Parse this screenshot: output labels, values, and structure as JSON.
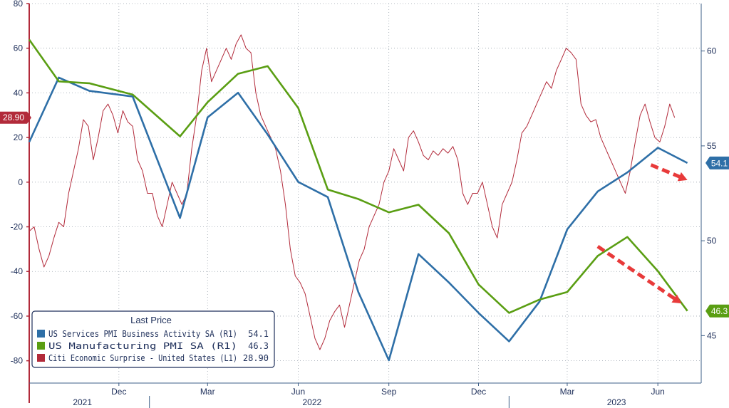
{
  "chart_data": {
    "type": "line",
    "grid": true,
    "legend": {
      "title": "Last Price",
      "placement": "bottom-left",
      "entries": [
        {
          "label": "US Services PMI Business Activity SA  (R1)",
          "value": "54.1",
          "color": "#2e6fa7"
        },
        {
          "label": "US Manufacturing PMI SA  (R1)",
          "value": "46.3",
          "color": "#5a9e13"
        },
        {
          "label": "Citi Economic Surprise - United States  (L1)",
          "value": "28.90",
          "color": "#b22a3a"
        }
      ]
    },
    "left_axis": {
      "min": -90,
      "max": 80,
      "ticks": [
        80,
        60,
        40,
        20,
        0,
        -20,
        -40,
        -60,
        -80
      ],
      "color": "#b22a3a"
    },
    "right_axis": {
      "min": 42.5,
      "max": 62.5,
      "ticks": [
        60,
        55,
        50,
        45
      ]
    },
    "x_axis": {
      "min": "2021-09-01",
      "max": "2023-07-15",
      "month_labels": [
        {
          "label": "Dec",
          "date": "2021-12-01"
        },
        {
          "label": "Mar",
          "date": "2022-03-01"
        },
        {
          "label": "Jun",
          "date": "2022-06-01"
        },
        {
          "label": "Sep",
          "date": "2022-09-01"
        },
        {
          "label": "Dec",
          "date": "2022-12-01"
        },
        {
          "label": "Mar",
          "date": "2023-03-01"
        },
        {
          "label": "Jun",
          "date": "2023-06-01"
        }
      ],
      "year_labels": [
        {
          "label": "2021",
          "date": "2021-10-25"
        },
        {
          "label": "2022",
          "date": "2022-06-15"
        },
        {
          "label": "2023",
          "date": "2023-04-20"
        }
      ],
      "year_dividers": [
        "2022-01-01",
        "2023-01-01"
      ]
    },
    "series": [
      {
        "name": "US Services PMI Business Activity SA",
        "axis": "right",
        "color": "#2e6fa7",
        "last_label": "54.1",
        "points": [
          [
            "2021-09-01",
            55.2
          ],
          [
            "2021-10-01",
            58.6
          ],
          [
            "2021-11-01",
            57.9
          ],
          [
            "2021-12-15",
            57.6
          ],
          [
            "2022-02-01",
            51.2
          ],
          [
            "2022-03-01",
            56.5
          ],
          [
            "2022-04-01",
            57.8
          ],
          [
            "2022-05-01",
            55.6
          ],
          [
            "2022-06-01",
            53.1
          ],
          [
            "2022-07-01",
            52.3
          ],
          [
            "2022-08-01",
            47.3
          ],
          [
            "2022-09-01",
            43.7
          ],
          [
            "2022-10-01",
            49.3
          ],
          [
            "2022-11-01",
            47.8
          ],
          [
            "2022-12-01",
            46.2
          ],
          [
            "2023-01-01",
            44.7
          ],
          [
            "2023-02-01",
            46.8
          ],
          [
            "2023-03-01",
            50.6
          ],
          [
            "2023-04-01",
            52.6
          ],
          [
            "2023-05-01",
            53.6
          ],
          [
            "2023-06-01",
            54.9
          ],
          [
            "2023-07-01",
            54.1
          ]
        ]
      },
      {
        "name": "US Manufacturing PMI SA",
        "axis": "right",
        "color": "#5a9e13",
        "last_label": "46.3",
        "points": [
          [
            "2021-09-01",
            60.6
          ],
          [
            "2021-10-01",
            58.4
          ],
          [
            "2021-11-01",
            58.3
          ],
          [
            "2021-12-15",
            57.7
          ],
          [
            "2022-02-01",
            55.5
          ],
          [
            "2022-03-01",
            57.3
          ],
          [
            "2022-04-01",
            58.8
          ],
          [
            "2022-05-01",
            59.2
          ],
          [
            "2022-06-01",
            57.0
          ],
          [
            "2022-07-01",
            52.7
          ],
          [
            "2022-08-01",
            52.2
          ],
          [
            "2022-09-01",
            51.5
          ],
          [
            "2022-10-01",
            51.9
          ],
          [
            "2022-11-01",
            50.4
          ],
          [
            "2022-12-01",
            47.7
          ],
          [
            "2023-01-01",
            46.2
          ],
          [
            "2023-02-01",
            46.9
          ],
          [
            "2023-03-01",
            47.3
          ],
          [
            "2023-04-01",
            49.2
          ],
          [
            "2023-05-01",
            50.2
          ],
          [
            "2023-06-01",
            48.4
          ],
          [
            "2023-07-01",
            46.3
          ]
        ]
      },
      {
        "name": "Citi Economic Surprise - United States",
        "axis": "left",
        "color": "#b22a3a",
        "last_label": "28.90",
        "points": [
          [
            "2021-09-01",
            -22
          ],
          [
            "2021-09-06",
            -20
          ],
          [
            "2021-09-11",
            -30
          ],
          [
            "2021-09-16",
            -38
          ],
          [
            "2021-09-21",
            -33
          ],
          [
            "2021-09-26",
            -25
          ],
          [
            "2021-10-01",
            -18
          ],
          [
            "2021-10-06",
            -20
          ],
          [
            "2021-10-11",
            -5
          ],
          [
            "2021-10-16",
            5
          ],
          [
            "2021-10-21",
            15
          ],
          [
            "2021-10-26",
            28
          ],
          [
            "2021-10-31",
            25
          ],
          [
            "2021-11-05",
            10
          ],
          [
            "2021-11-10",
            20
          ],
          [
            "2021-11-15",
            32
          ],
          [
            "2021-11-20",
            35
          ],
          [
            "2021-11-25",
            30
          ],
          [
            "2021-11-30",
            22
          ],
          [
            "2021-12-05",
            32
          ],
          [
            "2021-12-10",
            27
          ],
          [
            "2021-12-15",
            25
          ],
          [
            "2021-12-20",
            10
          ],
          [
            "2021-12-25",
            5
          ],
          [
            "2021-12-30",
            -5
          ],
          [
            "2022-01-04",
            -5
          ],
          [
            "2022-01-09",
            -15
          ],
          [
            "2022-01-14",
            -20
          ],
          [
            "2022-01-19",
            -10
          ],
          [
            "2022-01-24",
            0
          ],
          [
            "2022-01-29",
            -5
          ],
          [
            "2022-02-03",
            -10
          ],
          [
            "2022-02-08",
            -5
          ],
          [
            "2022-02-13",
            15
          ],
          [
            "2022-02-18",
            30
          ],
          [
            "2022-02-23",
            50
          ],
          [
            "2022-02-28",
            60
          ],
          [
            "2022-03-05",
            45
          ],
          [
            "2022-03-10",
            50
          ],
          [
            "2022-03-15",
            55
          ],
          [
            "2022-03-20",
            60
          ],
          [
            "2022-03-25",
            55
          ],
          [
            "2022-03-30",
            62
          ],
          [
            "2022-04-04",
            66
          ],
          [
            "2022-04-09",
            60
          ],
          [
            "2022-04-14",
            58
          ],
          [
            "2022-04-19",
            40
          ],
          [
            "2022-04-24",
            30
          ],
          [
            "2022-04-29",
            25
          ],
          [
            "2022-05-04",
            20
          ],
          [
            "2022-05-09",
            15
          ],
          [
            "2022-05-14",
            5
          ],
          [
            "2022-05-19",
            -10
          ],
          [
            "2022-05-24",
            -30
          ],
          [
            "2022-05-29",
            -42
          ],
          [
            "2022-06-03",
            -45
          ],
          [
            "2022-06-08",
            -50
          ],
          [
            "2022-06-13",
            -60
          ],
          [
            "2022-06-18",
            -70
          ],
          [
            "2022-06-23",
            -75
          ],
          [
            "2022-06-28",
            -70
          ],
          [
            "2022-07-03",
            -62
          ],
          [
            "2022-07-08",
            -58
          ],
          [
            "2022-07-13",
            -55
          ],
          [
            "2022-07-18",
            -65
          ],
          [
            "2022-07-23",
            -55
          ],
          [
            "2022-07-28",
            -45
          ],
          [
            "2022-08-02",
            -35
          ],
          [
            "2022-08-07",
            -30
          ],
          [
            "2022-08-12",
            -20
          ],
          [
            "2022-08-17",
            -15
          ],
          [
            "2022-08-22",
            -10
          ],
          [
            "2022-08-27",
            0
          ],
          [
            "2022-09-01",
            5
          ],
          [
            "2022-09-06",
            15
          ],
          [
            "2022-09-11",
            10
          ],
          [
            "2022-09-16",
            5
          ],
          [
            "2022-09-21",
            20
          ],
          [
            "2022-09-26",
            23
          ],
          [
            "2022-10-01",
            18
          ],
          [
            "2022-10-06",
            12
          ],
          [
            "2022-10-11",
            10
          ],
          [
            "2022-10-16",
            14
          ],
          [
            "2022-10-21",
            12
          ],
          [
            "2022-10-26",
            15
          ],
          [
            "2022-10-31",
            13
          ],
          [
            "2022-11-05",
            16
          ],
          [
            "2022-11-10",
            10
          ],
          [
            "2022-11-15",
            -5
          ],
          [
            "2022-11-20",
            -10
          ],
          [
            "2022-11-25",
            -5
          ],
          [
            "2022-11-30",
            -5
          ],
          [
            "2022-12-05",
            0
          ],
          [
            "2022-12-10",
            -10
          ],
          [
            "2022-12-15",
            -20
          ],
          [
            "2022-12-20",
            -25
          ],
          [
            "2022-12-25",
            -10
          ],
          [
            "2022-12-30",
            -5
          ],
          [
            "2023-01-04",
            0
          ],
          [
            "2023-01-09",
            10
          ],
          [
            "2023-01-14",
            22
          ],
          [
            "2023-01-19",
            25
          ],
          [
            "2023-01-24",
            30
          ],
          [
            "2023-01-29",
            35
          ],
          [
            "2023-02-03",
            40
          ],
          [
            "2023-02-08",
            45
          ],
          [
            "2023-02-13",
            42
          ],
          [
            "2023-02-18",
            50
          ],
          [
            "2023-02-23",
            55
          ],
          [
            "2023-02-28",
            60
          ],
          [
            "2023-03-05",
            58
          ],
          [
            "2023-03-10",
            55
          ],
          [
            "2023-03-15",
            35
          ],
          [
            "2023-03-20",
            30
          ],
          [
            "2023-03-25",
            27
          ],
          [
            "2023-03-30",
            28
          ],
          [
            "2023-04-04",
            20
          ],
          [
            "2023-04-09",
            15
          ],
          [
            "2023-04-14",
            10
          ],
          [
            "2023-04-19",
            5
          ],
          [
            "2023-04-24",
            0
          ],
          [
            "2023-04-29",
            -5
          ],
          [
            "2023-05-04",
            5
          ],
          [
            "2023-05-09",
            18
          ],
          [
            "2023-05-14",
            30
          ],
          [
            "2023-05-19",
            35
          ],
          [
            "2023-05-24",
            27
          ],
          [
            "2023-05-29",
            20
          ],
          [
            "2023-06-03",
            18
          ],
          [
            "2023-06-08",
            25
          ],
          [
            "2023-06-13",
            35
          ],
          [
            "2023-06-18",
            28.9
          ]
        ]
      }
    ],
    "annotations": [
      {
        "type": "arrow",
        "color": "#e83a3a",
        "from": {
          "date": "2023-05-25",
          "axis": "right",
          "value": 54.0
        },
        "to": {
          "date": "2023-07-01",
          "axis": "right",
          "value": 53.2
        }
      },
      {
        "type": "arrow",
        "color": "#e83a3a",
        "from": {
          "date": "2023-04-01",
          "axis": "right",
          "value": 49.7
        },
        "to": {
          "date": "2023-06-25",
          "axis": "right",
          "value": 46.7
        }
      }
    ]
  }
}
